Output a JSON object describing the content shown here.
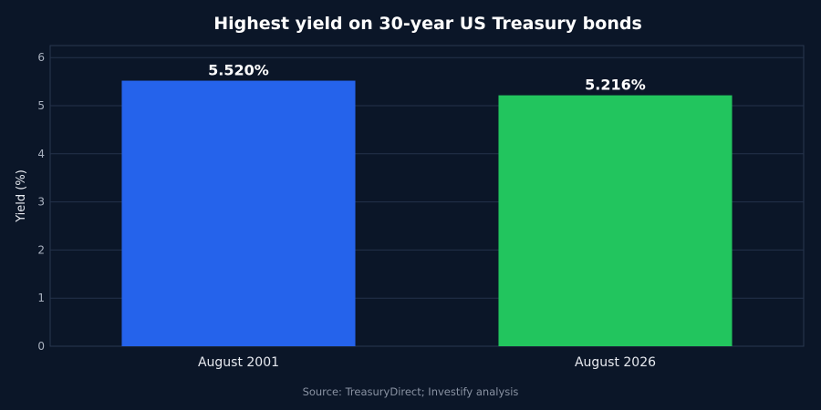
{
  "chart_data": {
    "type": "bar",
    "title": "Highest yield on 30-year US Treasury bonds",
    "xlabel": "",
    "ylabel": "Yield (%)",
    "categories": [
      "August 2001",
      "August 2026"
    ],
    "values": [
      5.52,
      5.216
    ],
    "data_labels": [
      "5.520%",
      "5.216%"
    ],
    "bar_colors": [
      "#2563eb",
      "#22c55e"
    ],
    "ylim": [
      0,
      6.25
    ],
    "yticks": [
      0,
      1,
      2,
      3,
      4,
      5,
      6
    ],
    "grid": true,
    "legend": "none",
    "source": "Source: TreasuryDirect; Investify analysis"
  },
  "colors": {
    "background": "#0b1628",
    "grid": "#24324a"
  }
}
